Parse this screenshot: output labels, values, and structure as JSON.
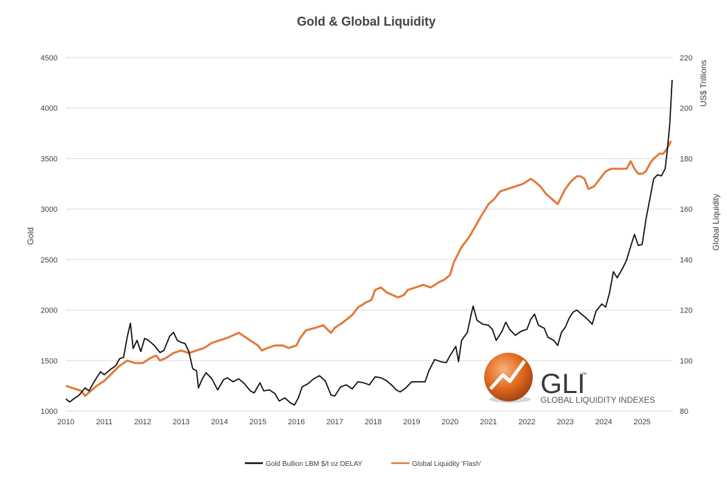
{
  "colors": {
    "gold": "#111111",
    "liquidity": "#E07B39",
    "grid": "#D9D9D9",
    "text": "#404040"
  },
  "logo": {
    "abbr": "GLI",
    "tm": "™",
    "text": "GLOBAL LIQUIDITY INDEXES"
  },
  "chart_data": {
    "type": "line",
    "title": "Gold & Global Liquidity",
    "x_tick_labels": [
      "2010",
      "2011",
      "2012",
      "2013",
      "2014",
      "2015",
      "2016",
      "2017",
      "2018",
      "2019",
      "2020",
      "2021",
      "2022",
      "2023",
      "2024",
      "2025"
    ],
    "y_left": {
      "label": "Gold",
      "range": [
        1000,
        4500
      ],
      "ticks": [
        1000,
        1500,
        2000,
        2500,
        3000,
        3500,
        4000,
        4500
      ]
    },
    "y_right": {
      "label": "Global Liquidity",
      "unit_label": "US$ Trillions",
      "range": [
        80,
        220
      ],
      "ticks": [
        80,
        100,
        120,
        140,
        160,
        180,
        200,
        220
      ]
    },
    "grid": "horizontal",
    "legend_position": "bottom",
    "series": [
      {
        "name": "Gold Bullion LBM $/t oz DELAY",
        "axis": "left",
        "points": [
          [
            2010.0,
            1120
          ],
          [
            2010.1,
            1090
          ],
          [
            2010.2,
            1120
          ],
          [
            2010.35,
            1160
          ],
          [
            2010.5,
            1230
          ],
          [
            2010.6,
            1200
          ],
          [
            2010.75,
            1300
          ],
          [
            2010.9,
            1390
          ],
          [
            2011.0,
            1360
          ],
          [
            2011.15,
            1410
          ],
          [
            2011.3,
            1450
          ],
          [
            2011.4,
            1520
          ],
          [
            2011.5,
            1530
          ],
          [
            2011.6,
            1740
          ],
          [
            2011.68,
            1870
          ],
          [
            2011.75,
            1620
          ],
          [
            2011.85,
            1700
          ],
          [
            2011.95,
            1590
          ],
          [
            2012.05,
            1720
          ],
          [
            2012.15,
            1700
          ],
          [
            2012.3,
            1650
          ],
          [
            2012.45,
            1580
          ],
          [
            2012.55,
            1600
          ],
          [
            2012.7,
            1740
          ],
          [
            2012.8,
            1780
          ],
          [
            2012.9,
            1700
          ],
          [
            2013.0,
            1680
          ],
          [
            2013.1,
            1670
          ],
          [
            2013.2,
            1590
          ],
          [
            2013.3,
            1420
          ],
          [
            2013.4,
            1400
          ],
          [
            2013.45,
            1230
          ],
          [
            2013.55,
            1320
          ],
          [
            2013.65,
            1380
          ],
          [
            2013.8,
            1320
          ],
          [
            2013.95,
            1210
          ],
          [
            2014.1,
            1310
          ],
          [
            2014.2,
            1330
          ],
          [
            2014.35,
            1290
          ],
          [
            2014.5,
            1320
          ],
          [
            2014.65,
            1270
          ],
          [
            2014.8,
            1200
          ],
          [
            2014.9,
            1180
          ],
          [
            2015.05,
            1280
          ],
          [
            2015.15,
            1200
          ],
          [
            2015.3,
            1210
          ],
          [
            2015.45,
            1170
          ],
          [
            2015.55,
            1100
          ],
          [
            2015.7,
            1130
          ],
          [
            2015.85,
            1080
          ],
          [
            2015.95,
            1060
          ],
          [
            2016.05,
            1130
          ],
          [
            2016.15,
            1240
          ],
          [
            2016.3,
            1270
          ],
          [
            2016.45,
            1320
          ],
          [
            2016.6,
            1350
          ],
          [
            2016.75,
            1300
          ],
          [
            2016.9,
            1160
          ],
          [
            2017.0,
            1150
          ],
          [
            2017.15,
            1240
          ],
          [
            2017.3,
            1260
          ],
          [
            2017.45,
            1220
          ],
          [
            2017.6,
            1290
          ],
          [
            2017.75,
            1280
          ],
          [
            2017.9,
            1260
          ],
          [
            2018.05,
            1340
          ],
          [
            2018.2,
            1330
          ],
          [
            2018.35,
            1300
          ],
          [
            2018.5,
            1250
          ],
          [
            2018.6,
            1210
          ],
          [
            2018.7,
            1190
          ],
          [
            2018.85,
            1230
          ],
          [
            2019.0,
            1290
          ],
          [
            2019.2,
            1290
          ],
          [
            2019.35,
            1290
          ],
          [
            2019.45,
            1400
          ],
          [
            2019.6,
            1510
          ],
          [
            2019.75,
            1490
          ],
          [
            2019.9,
            1480
          ],
          [
            2020.0,
            1550
          ],
          [
            2020.15,
            1640
          ],
          [
            2020.22,
            1490
          ],
          [
            2020.3,
            1700
          ],
          [
            2020.45,
            1780
          ],
          [
            2020.55,
            1960
          ],
          [
            2020.6,
            2040
          ],
          [
            2020.7,
            1900
          ],
          [
            2020.85,
            1860
          ],
          [
            2021.0,
            1850
          ],
          [
            2021.1,
            1810
          ],
          [
            2021.2,
            1700
          ],
          [
            2021.35,
            1790
          ],
          [
            2021.45,
            1880
          ],
          [
            2021.55,
            1810
          ],
          [
            2021.7,
            1750
          ],
          [
            2021.85,
            1790
          ],
          [
            2022.0,
            1810
          ],
          [
            2022.1,
            1910
          ],
          [
            2022.2,
            1960
          ],
          [
            2022.3,
            1850
          ],
          [
            2022.45,
            1820
          ],
          [
            2022.55,
            1730
          ],
          [
            2022.7,
            1700
          ],
          [
            2022.8,
            1650
          ],
          [
            2022.9,
            1780
          ],
          [
            2023.0,
            1830
          ],
          [
            2023.1,
            1920
          ],
          [
            2023.2,
            1980
          ],
          [
            2023.3,
            2000
          ],
          [
            2023.45,
            1950
          ],
          [
            2023.55,
            1920
          ],
          [
            2023.7,
            1860
          ],
          [
            2023.8,
            1990
          ],
          [
            2023.95,
            2060
          ],
          [
            2024.05,
            2030
          ],
          [
            2024.15,
            2170
          ],
          [
            2024.25,
            2380
          ],
          [
            2024.35,
            2320
          ],
          [
            2024.5,
            2420
          ],
          [
            2024.6,
            2500
          ],
          [
            2024.7,
            2630
          ],
          [
            2024.8,
            2750
          ],
          [
            2024.9,
            2640
          ],
          [
            2025.0,
            2650
          ],
          [
            2025.1,
            2900
          ],
          [
            2025.2,
            3100
          ],
          [
            2025.3,
            3300
          ],
          [
            2025.4,
            3340
          ],
          [
            2025.5,
            3330
          ],
          [
            2025.6,
            3400
          ],
          [
            2025.66,
            3600
          ],
          [
            2025.72,
            3850
          ],
          [
            2025.78,
            4280
          ]
        ]
      },
      {
        "name": "Global Liquidity 'Flash'",
        "axis": "right",
        "points": [
          [
            2010.0,
            90
          ],
          [
            2010.2,
            89
          ],
          [
            2010.4,
            88
          ],
          [
            2010.5,
            86
          ],
          [
            2010.65,
            88
          ],
          [
            2010.8,
            90
          ],
          [
            2011.0,
            92
          ],
          [
            2011.2,
            95
          ],
          [
            2011.4,
            98
          ],
          [
            2011.6,
            100
          ],
          [
            2011.8,
            99
          ],
          [
            2012.0,
            99
          ],
          [
            2012.2,
            101
          ],
          [
            2012.35,
            102
          ],
          [
            2012.45,
            100
          ],
          [
            2012.6,
            101
          ],
          [
            2012.8,
            103
          ],
          [
            2013.0,
            104
          ],
          [
            2013.2,
            103
          ],
          [
            2013.4,
            104
          ],
          [
            2013.6,
            105
          ],
          [
            2013.8,
            107
          ],
          [
            2014.0,
            108
          ],
          [
            2014.2,
            109
          ],
          [
            2014.35,
            110
          ],
          [
            2014.5,
            111
          ],
          [
            2014.6,
            110
          ],
          [
            2014.8,
            108
          ],
          [
            2015.0,
            106
          ],
          [
            2015.1,
            104
          ],
          [
            2015.25,
            105
          ],
          [
            2015.45,
            106
          ],
          [
            2015.65,
            106
          ],
          [
            2015.8,
            105
          ],
          [
            2016.0,
            106
          ],
          [
            2016.1,
            109
          ],
          [
            2016.25,
            112
          ],
          [
            2016.5,
            113
          ],
          [
            2016.7,
            114
          ],
          [
            2016.9,
            111
          ],
          [
            2017.0,
            113
          ],
          [
            2017.2,
            115
          ],
          [
            2017.45,
            118
          ],
          [
            2017.6,
            121
          ],
          [
            2017.8,
            123
          ],
          [
            2017.95,
            124
          ],
          [
            2018.05,
            128
          ],
          [
            2018.2,
            129
          ],
          [
            2018.35,
            127
          ],
          [
            2018.5,
            126
          ],
          [
            2018.65,
            125
          ],
          [
            2018.8,
            126
          ],
          [
            2018.9,
            128
          ],
          [
            2019.1,
            129
          ],
          [
            2019.3,
            130
          ],
          [
            2019.5,
            129
          ],
          [
            2019.7,
            131
          ],
          [
            2019.85,
            132
          ],
          [
            2020.0,
            134
          ],
          [
            2020.1,
            139
          ],
          [
            2020.3,
            145
          ],
          [
            2020.5,
            149
          ],
          [
            2020.65,
            153
          ],
          [
            2020.8,
            157
          ],
          [
            2021.0,
            162
          ],
          [
            2021.15,
            164
          ],
          [
            2021.3,
            167
          ],
          [
            2021.5,
            168
          ],
          [
            2021.7,
            169
          ],
          [
            2021.9,
            170
          ],
          [
            2022.0,
            171
          ],
          [
            2022.1,
            172
          ],
          [
            2022.2,
            171
          ],
          [
            2022.35,
            169
          ],
          [
            2022.5,
            166
          ],
          [
            2022.65,
            164
          ],
          [
            2022.8,
            162
          ],
          [
            2022.9,
            165
          ],
          [
            2023.0,
            168
          ],
          [
            2023.15,
            171
          ],
          [
            2023.3,
            173
          ],
          [
            2023.4,
            173
          ],
          [
            2023.5,
            172
          ],
          [
            2023.6,
            168
          ],
          [
            2023.75,
            169
          ],
          [
            2023.9,
            172
          ],
          [
            2024.05,
            175
          ],
          [
            2024.2,
            176
          ],
          [
            2024.35,
            176
          ],
          [
            2024.5,
            176
          ],
          [
            2024.6,
            176
          ],
          [
            2024.7,
            179
          ],
          [
            2024.8,
            176
          ],
          [
            2024.9,
            174
          ],
          [
            2025.0,
            174
          ],
          [
            2025.1,
            175
          ],
          [
            2025.2,
            178
          ],
          [
            2025.3,
            180
          ],
          [
            2025.45,
            182
          ],
          [
            2025.55,
            182
          ],
          [
            2025.65,
            184
          ],
          [
            2025.75,
            187
          ]
        ]
      }
    ]
  }
}
